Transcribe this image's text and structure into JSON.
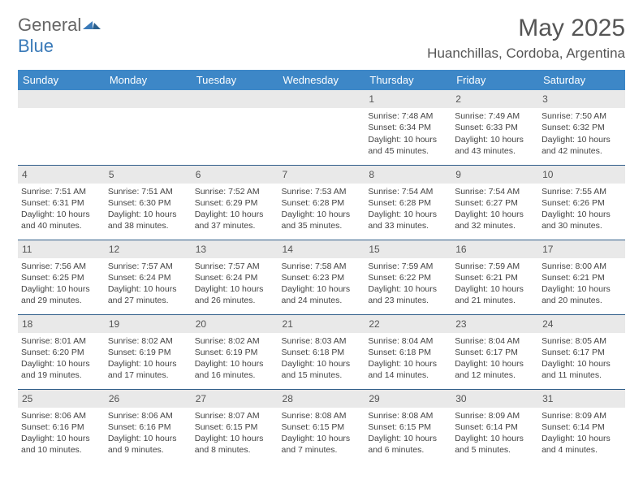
{
  "logo": {
    "textA": "General",
    "textB": "Blue"
  },
  "title": "May 2025",
  "location": "Huanchillas, Cordoba, Argentina",
  "columns": [
    "Sunday",
    "Monday",
    "Tuesday",
    "Wednesday",
    "Thursday",
    "Friday",
    "Saturday"
  ],
  "colors": {
    "header_bg": "#3d87c7",
    "header_text": "#ffffff",
    "daynum_bg": "#e9e9e9",
    "rule": "#2f5d89",
    "body_text": "#444444",
    "logo_gray": "#666666",
    "logo_blue": "#3a7ab8"
  },
  "weeks": [
    [
      {
        "day": "",
        "lines": []
      },
      {
        "day": "",
        "lines": []
      },
      {
        "day": "",
        "lines": []
      },
      {
        "day": "",
        "lines": []
      },
      {
        "day": "1",
        "lines": [
          "Sunrise: 7:48 AM",
          "Sunset: 6:34 PM",
          "Daylight: 10 hours and 45 minutes."
        ]
      },
      {
        "day": "2",
        "lines": [
          "Sunrise: 7:49 AM",
          "Sunset: 6:33 PM",
          "Daylight: 10 hours and 43 minutes."
        ]
      },
      {
        "day": "3",
        "lines": [
          "Sunrise: 7:50 AM",
          "Sunset: 6:32 PM",
          "Daylight: 10 hours and 42 minutes."
        ]
      }
    ],
    [
      {
        "day": "4",
        "lines": [
          "Sunrise: 7:51 AM",
          "Sunset: 6:31 PM",
          "Daylight: 10 hours and 40 minutes."
        ]
      },
      {
        "day": "5",
        "lines": [
          "Sunrise: 7:51 AM",
          "Sunset: 6:30 PM",
          "Daylight: 10 hours and 38 minutes."
        ]
      },
      {
        "day": "6",
        "lines": [
          "Sunrise: 7:52 AM",
          "Sunset: 6:29 PM",
          "Daylight: 10 hours and 37 minutes."
        ]
      },
      {
        "day": "7",
        "lines": [
          "Sunrise: 7:53 AM",
          "Sunset: 6:28 PM",
          "Daylight: 10 hours and 35 minutes."
        ]
      },
      {
        "day": "8",
        "lines": [
          "Sunrise: 7:54 AM",
          "Sunset: 6:28 PM",
          "Daylight: 10 hours and 33 minutes."
        ]
      },
      {
        "day": "9",
        "lines": [
          "Sunrise: 7:54 AM",
          "Sunset: 6:27 PM",
          "Daylight: 10 hours and 32 minutes."
        ]
      },
      {
        "day": "10",
        "lines": [
          "Sunrise: 7:55 AM",
          "Sunset: 6:26 PM",
          "Daylight: 10 hours and 30 minutes."
        ]
      }
    ],
    [
      {
        "day": "11",
        "lines": [
          "Sunrise: 7:56 AM",
          "Sunset: 6:25 PM",
          "Daylight: 10 hours and 29 minutes."
        ]
      },
      {
        "day": "12",
        "lines": [
          "Sunrise: 7:57 AM",
          "Sunset: 6:24 PM",
          "Daylight: 10 hours and 27 minutes."
        ]
      },
      {
        "day": "13",
        "lines": [
          "Sunrise: 7:57 AM",
          "Sunset: 6:24 PM",
          "Daylight: 10 hours and 26 minutes."
        ]
      },
      {
        "day": "14",
        "lines": [
          "Sunrise: 7:58 AM",
          "Sunset: 6:23 PM",
          "Daylight: 10 hours and 24 minutes."
        ]
      },
      {
        "day": "15",
        "lines": [
          "Sunrise: 7:59 AM",
          "Sunset: 6:22 PM",
          "Daylight: 10 hours and 23 minutes."
        ]
      },
      {
        "day": "16",
        "lines": [
          "Sunrise: 7:59 AM",
          "Sunset: 6:21 PM",
          "Daylight: 10 hours and 21 minutes."
        ]
      },
      {
        "day": "17",
        "lines": [
          "Sunrise: 8:00 AM",
          "Sunset: 6:21 PM",
          "Daylight: 10 hours and 20 minutes."
        ]
      }
    ],
    [
      {
        "day": "18",
        "lines": [
          "Sunrise: 8:01 AM",
          "Sunset: 6:20 PM",
          "Daylight: 10 hours and 19 minutes."
        ]
      },
      {
        "day": "19",
        "lines": [
          "Sunrise: 8:02 AM",
          "Sunset: 6:19 PM",
          "Daylight: 10 hours and 17 minutes."
        ]
      },
      {
        "day": "20",
        "lines": [
          "Sunrise: 8:02 AM",
          "Sunset: 6:19 PM",
          "Daylight: 10 hours and 16 minutes."
        ]
      },
      {
        "day": "21",
        "lines": [
          "Sunrise: 8:03 AM",
          "Sunset: 6:18 PM",
          "Daylight: 10 hours and 15 minutes."
        ]
      },
      {
        "day": "22",
        "lines": [
          "Sunrise: 8:04 AM",
          "Sunset: 6:18 PM",
          "Daylight: 10 hours and 14 minutes."
        ]
      },
      {
        "day": "23",
        "lines": [
          "Sunrise: 8:04 AM",
          "Sunset: 6:17 PM",
          "Daylight: 10 hours and 12 minutes."
        ]
      },
      {
        "day": "24",
        "lines": [
          "Sunrise: 8:05 AM",
          "Sunset: 6:17 PM",
          "Daylight: 10 hours and 11 minutes."
        ]
      }
    ],
    [
      {
        "day": "25",
        "lines": [
          "Sunrise: 8:06 AM",
          "Sunset: 6:16 PM",
          "Daylight: 10 hours and 10 minutes."
        ]
      },
      {
        "day": "26",
        "lines": [
          "Sunrise: 8:06 AM",
          "Sunset: 6:16 PM",
          "Daylight: 10 hours and 9 minutes."
        ]
      },
      {
        "day": "27",
        "lines": [
          "Sunrise: 8:07 AM",
          "Sunset: 6:15 PM",
          "Daylight: 10 hours and 8 minutes."
        ]
      },
      {
        "day": "28",
        "lines": [
          "Sunrise: 8:08 AM",
          "Sunset: 6:15 PM",
          "Daylight: 10 hours and 7 minutes."
        ]
      },
      {
        "day": "29",
        "lines": [
          "Sunrise: 8:08 AM",
          "Sunset: 6:15 PM",
          "Daylight: 10 hours and 6 minutes."
        ]
      },
      {
        "day": "30",
        "lines": [
          "Sunrise: 8:09 AM",
          "Sunset: 6:14 PM",
          "Daylight: 10 hours and 5 minutes."
        ]
      },
      {
        "day": "31",
        "lines": [
          "Sunrise: 8:09 AM",
          "Sunset: 6:14 PM",
          "Daylight: 10 hours and 4 minutes."
        ]
      }
    ]
  ]
}
